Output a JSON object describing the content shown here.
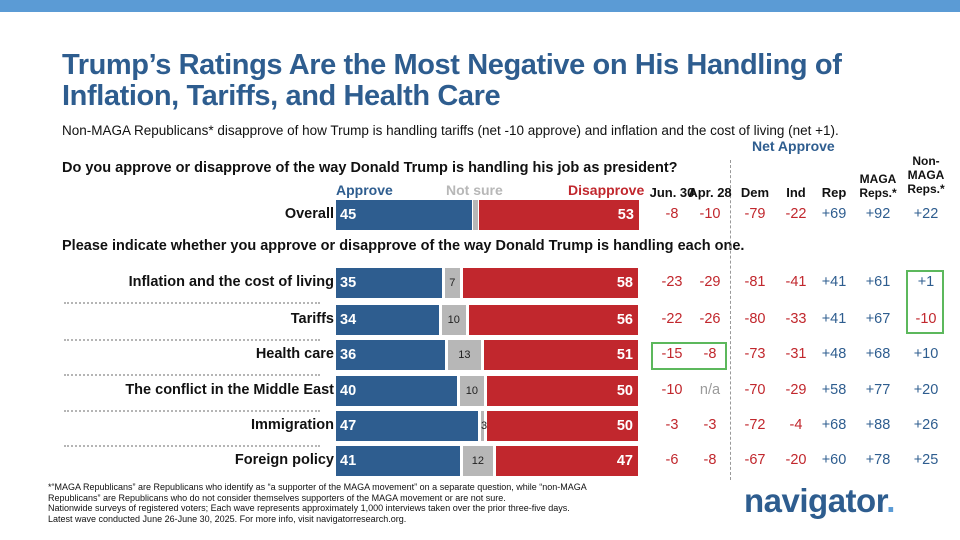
{
  "title": "Trump’s Ratings Are the Most Negative on His Handling of Inflation, Tariffs, and Health Care",
  "subtitle": "Non-MAGA Republicans* disapprove of how Trump is handling tariffs (net -10 approve) and inflation and the cost of living (net +1).",
  "question_overall": "Do you approve or disapprove of the way Donald Trump is handling his job as president?",
  "question_issues": "Please indicate whether you approve or disapprove of the way Donald Trump is handling each one.",
  "legend": {
    "approve": "Approve",
    "not_sure": "Not sure",
    "disapprove": "Disapprove"
  },
  "net_approve_header": "Net Approve",
  "columns": [
    {
      "key": "jun30",
      "label": "Jun. 30"
    },
    {
      "key": "apr28",
      "label": "Apr. 28"
    },
    {
      "key": "dem",
      "label": "Dem"
    },
    {
      "key": "ind",
      "label": "Ind"
    },
    {
      "key": "rep",
      "label": "Rep"
    },
    {
      "key": "maga",
      "label": "MAGA Reps.*"
    },
    {
      "key": "nonmaga",
      "label": "Non-MAGA Reps.*"
    }
  ],
  "colors": {
    "approve": "#2e5d8f",
    "not_sure": "#b7b7b7",
    "disapprove": "#c1272d",
    "title": "#2e5d8f",
    "highlight": "#5cb85c",
    "topbar": "#5b9bd5"
  },
  "chart_data": {
    "type": "bar",
    "stacked": true,
    "orientation": "horizontal",
    "categories": [
      "Overall",
      "Inflation and the cost of living",
      "Tariffs",
      "Health care",
      "The conflict in the Middle East",
      "Immigration",
      "Foreign policy"
    ],
    "series": [
      {
        "name": "Approve",
        "values": [
          45,
          35,
          34,
          36,
          40,
          47,
          41
        ]
      },
      {
        "name": "Not sure",
        "values": [
          null,
          7,
          10,
          13,
          10,
          3,
          12
        ]
      },
      {
        "name": "Disapprove",
        "values": [
          53,
          58,
          56,
          51,
          50,
          50,
          47
        ]
      }
    ]
  },
  "net_table": [
    [
      "-8",
      "-10",
      "-79",
      "-22",
      "+69",
      "+92",
      "+22"
    ],
    [
      "-23",
      "-29",
      "-81",
      "-41",
      "+41",
      "+61",
      "+1"
    ],
    [
      "-22",
      "-26",
      "-80",
      "-33",
      "+41",
      "+67",
      "-10"
    ],
    [
      "-15",
      "-8",
      "-73",
      "-31",
      "+48",
      "+68",
      "+10"
    ],
    [
      "-10",
      "n/a",
      "-70",
      "-29",
      "+58",
      "+77",
      "+20"
    ],
    [
      "-3",
      "-3",
      "-72",
      "-4",
      "+68",
      "+88",
      "+26"
    ],
    [
      "-6",
      "-8",
      "-67",
      "-20",
      "+60",
      "+78",
      "+25"
    ]
  ],
  "footnote": [
    "*“MAGA Republicans” are Republicans who identify as “a supporter of the MAGA movement” on a separate question, while “non-MAGA",
    "Republicans” are Republicans who do not consider themselves supporters of the MAGA movement or are not sure.",
    "Nationwide surveys of registered voters; Each wave represents approximately 1,000 interviews taken over the prior three-five days.",
    "Latest wave conducted June 26-June 30, 2025. For more info, visit navigatorresearch.org."
  ],
  "logo": "navigator",
  "logo_dot": "."
}
